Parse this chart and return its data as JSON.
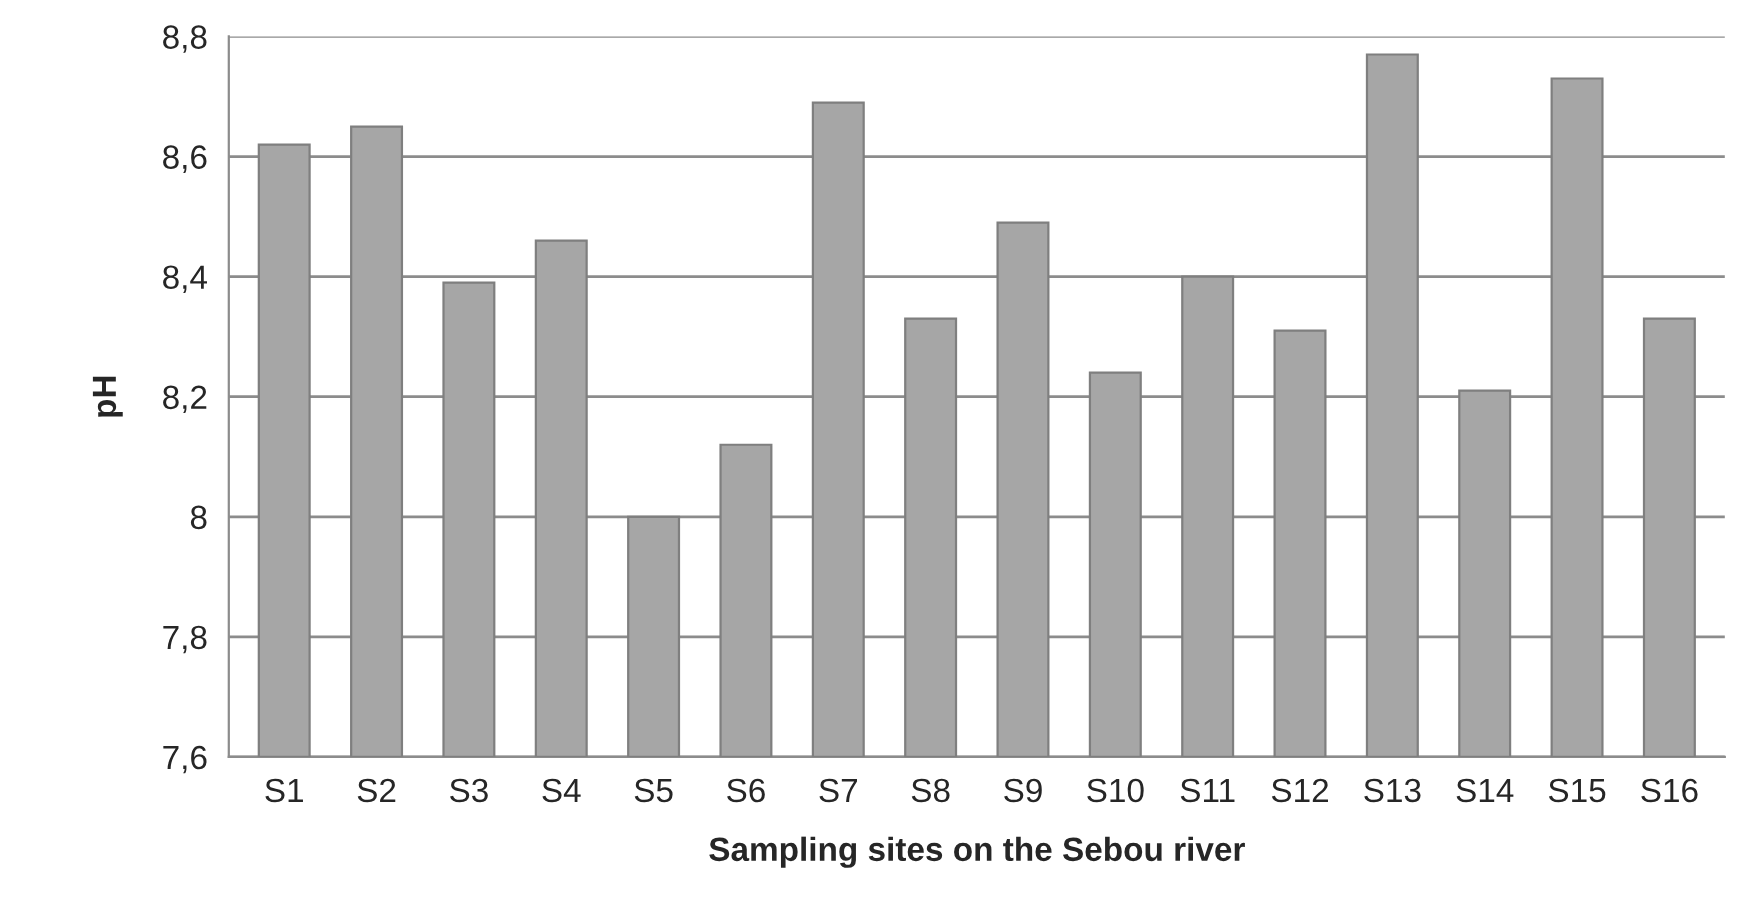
{
  "chart_data": {
    "type": "bar",
    "xlabel": "Sampling sites on the Sebou river",
    "ylabel": "pH",
    "categories": [
      "S1",
      "S2",
      "S3",
      "S4",
      "S5",
      "S6",
      "S7",
      "S8",
      "S9",
      "S10",
      "S11",
      "S12",
      "S13",
      "S14",
      "S15",
      "S16"
    ],
    "values": [
      8.62,
      8.65,
      8.39,
      8.46,
      8.0,
      8.12,
      8.69,
      8.33,
      8.49,
      8.24,
      8.4,
      8.31,
      8.77,
      8.21,
      8.73,
      8.33
    ],
    "color": "#a6a6a6",
    "ylim": [
      7.6,
      8.8
    ],
    "yticks": [
      {
        "value": 7.6,
        "label": "7,6"
      },
      {
        "value": 7.8,
        "label": "7,8"
      },
      {
        "value": 8.0,
        "label": "8"
      },
      {
        "value": 8.2,
        "label": "8,2"
      },
      {
        "value": 8.4,
        "label": "8,4"
      },
      {
        "value": 8.6,
        "label": "8,6"
      },
      {
        "value": 8.8,
        "label": "8,8"
      }
    ],
    "grid": "y"
  }
}
